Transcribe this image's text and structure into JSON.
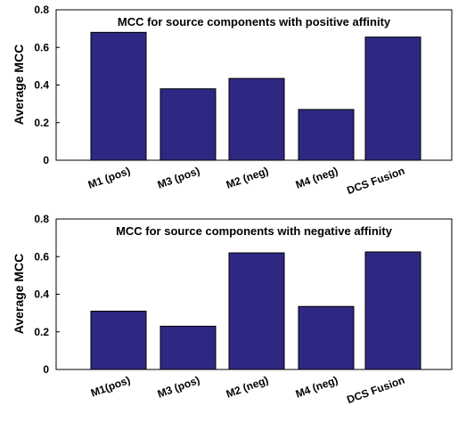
{
  "chart_data": [
    {
      "type": "bar",
      "title": "MCC for source components with positive affinity",
      "ylabel": "Average MCC",
      "xlabel": "",
      "categories": [
        "M1 (pos)",
        "M3 (pos)",
        "M2 (neg)",
        "M4 (neg)",
        "DCS Fusion"
      ],
      "values": [
        0.68,
        0.38,
        0.435,
        0.27,
        0.655
      ],
      "ylim": [
        0,
        0.8
      ],
      "yticks": [
        "0",
        "0.2",
        "0.4",
        "0.6",
        "0.8"
      ],
      "bar_color": "#2e2883",
      "grid": false
    },
    {
      "type": "bar",
      "title": "MCC for source components with negative affinity",
      "ylabel": "Average MCC",
      "xlabel": "",
      "categories": [
        "M1(pos)",
        "M3 (pos)",
        "M2 (neg)",
        "M4 (neg)",
        "DCS Fusion"
      ],
      "values": [
        0.31,
        0.23,
        0.62,
        0.335,
        0.625
      ],
      "ylim": [
        0,
        0.8
      ],
      "yticks": [
        "0",
        "0.2",
        "0.4",
        "0.6",
        "0.8"
      ],
      "bar_color": "#2e2883",
      "grid": false
    }
  ]
}
